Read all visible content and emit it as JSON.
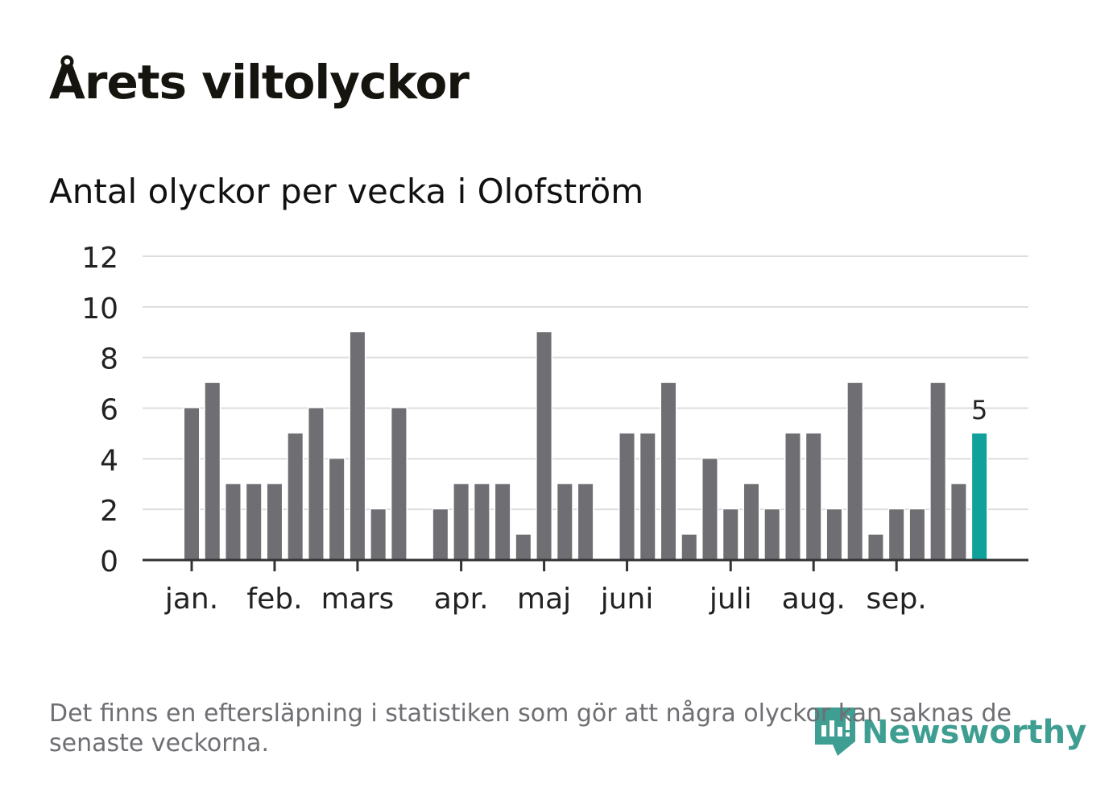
{
  "title": "Årets viltolyckor",
  "subtitle": "Antal olyckor per vecka i Olofström",
  "note": "Det finns en eftersläpning i statistiken som gör att några olyckor kan saknas de senaste veckorna.",
  "logo": "Newsworthy",
  "colors": {
    "bar": "#6f6e73",
    "highlight": "#10a19a",
    "grid": "#dddddd",
    "axis": "#333333"
  },
  "chart_data": {
    "type": "bar",
    "title": "Antal olyckor per vecka i Olofström",
    "xlabel": "",
    "ylabel": "",
    "ylim": [
      0,
      12
    ],
    "yticks": [
      0,
      2,
      4,
      6,
      8,
      10,
      12
    ],
    "grid": true,
    "weeks": [
      1,
      2,
      3,
      4,
      5,
      6,
      7,
      8,
      9,
      10,
      11,
      12,
      13,
      14,
      15,
      16,
      17,
      18,
      19,
      20,
      21,
      22,
      23,
      24,
      25,
      26,
      27,
      28,
      29,
      30,
      31,
      32,
      33,
      34,
      35,
      36,
      37,
      38,
      39
    ],
    "values": [
      6,
      7,
      3,
      3,
      3,
      5,
      6,
      4,
      9,
      2,
      6,
      0,
      2,
      3,
      3,
      3,
      1,
      9,
      3,
      3,
      0,
      5,
      5,
      7,
      1,
      4,
      2,
      3,
      2,
      5,
      5,
      2,
      7,
      1,
      2,
      2,
      7,
      3,
      5
    ],
    "highlight_last": true,
    "last_label": "5",
    "month_ticks": [
      {
        "label": "jan.",
        "week": 1
      },
      {
        "label": "feb.",
        "week": 5
      },
      {
        "label": "mars",
        "week": 9
      },
      {
        "label": "apr.",
        "week": 14
      },
      {
        "label": "maj",
        "week": 18
      },
      {
        "label": "juni",
        "week": 22
      },
      {
        "label": "juli",
        "week": 27
      },
      {
        "label": "aug.",
        "week": 31
      },
      {
        "label": "sep.",
        "week": 35
      }
    ]
  }
}
